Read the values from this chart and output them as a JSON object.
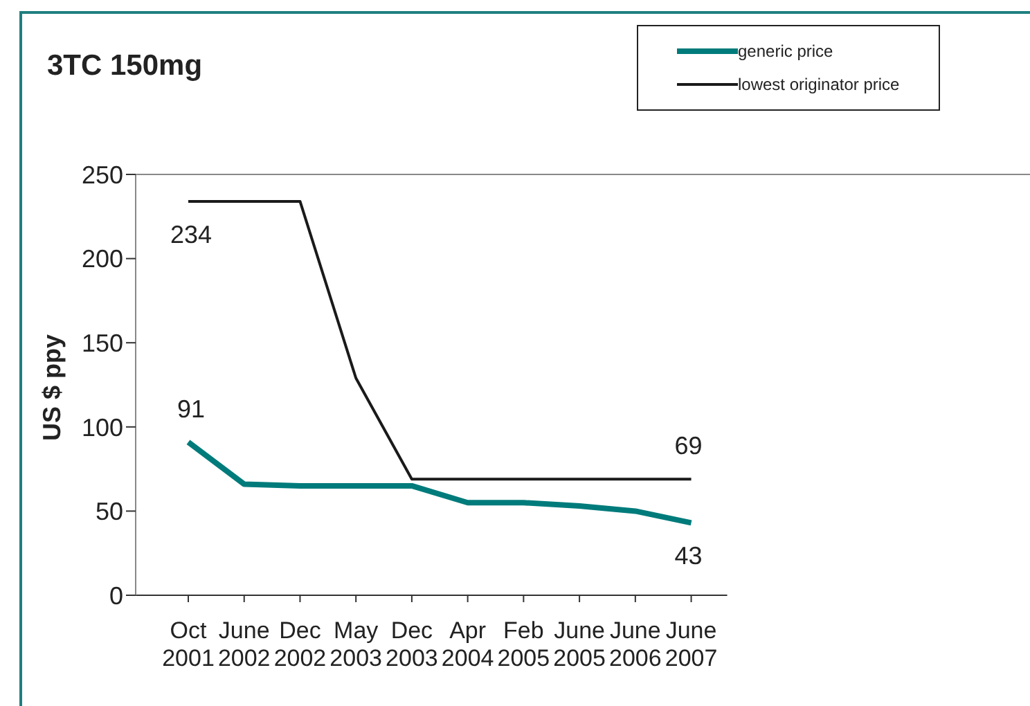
{
  "chart_data": {
    "type": "line",
    "title": "3TC 150mg",
    "ylabel": "US $ ppy",
    "categories": [
      "Oct 2001",
      "June 2002",
      "Dec 2002",
      "May 2003",
      "Dec 2003",
      "Apr 2004",
      "Feb 2005",
      "June 2005",
      "June 2006",
      "June 2007"
    ],
    "series": [
      {
        "name": "generic price",
        "color": "#007b7b",
        "values": [
          91,
          66,
          65,
          65,
          65,
          55,
          55,
          53,
          50,
          43
        ],
        "value_labels": [
          "91",
          null,
          null,
          null,
          null,
          null,
          null,
          null,
          null,
          "43"
        ]
      },
      {
        "name": "lowest originator price",
        "color": "#1a1a1a",
        "values": [
          234,
          234,
          234,
          129,
          69,
          69,
          69,
          69,
          69,
          69
        ],
        "value_labels": [
          "234",
          null,
          null,
          null,
          null,
          null,
          null,
          null,
          null,
          "69"
        ]
      }
    ],
    "ylim": [
      0,
      250
    ],
    "yticks": [
      0,
      50,
      100,
      150,
      200,
      250
    ],
    "grid": false,
    "legend": "top right",
    "marker": "none",
    "line_style": "solid"
  }
}
